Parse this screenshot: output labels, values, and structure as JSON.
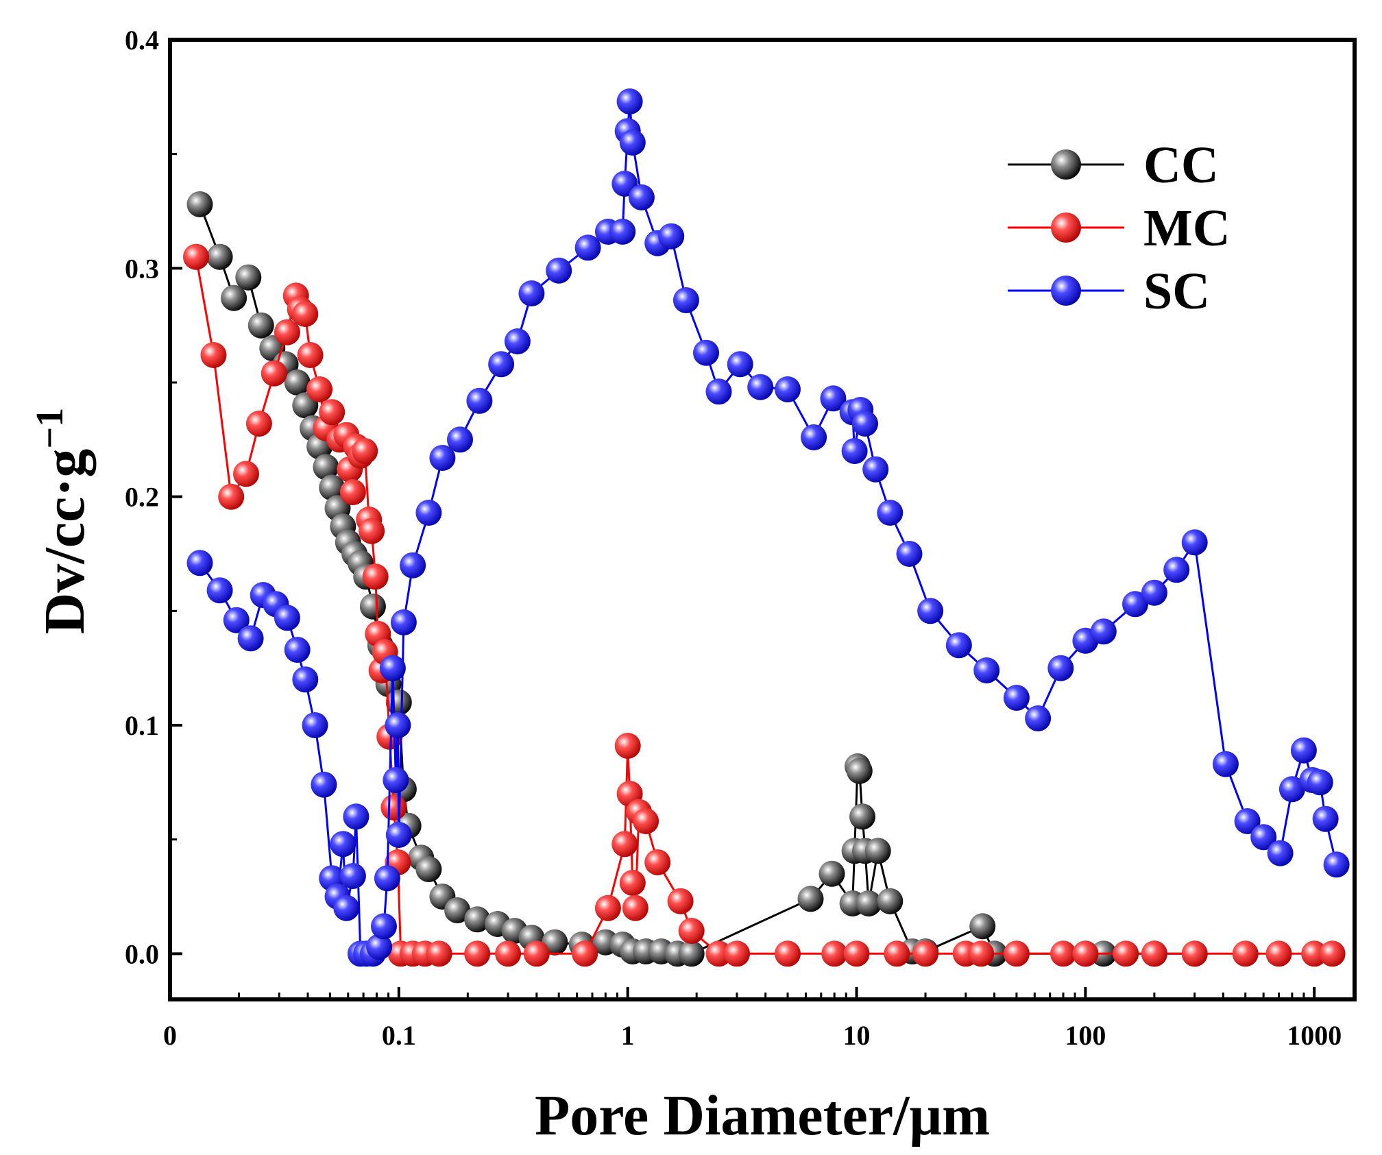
{
  "chart_data": {
    "type": "scatter",
    "title": "",
    "xlabel": "Pore Diameter/μm",
    "ylabel_main": "Dv/cc·g",
    "ylabel_sup": "−1",
    "xscale": "log",
    "xlim": [
      0.01,
      1500
    ],
    "ylim": [
      -0.02,
      0.4
    ],
    "x_tick_labels": [
      "0",
      "0.1",
      "1",
      "10",
      "100",
      "1000"
    ],
    "x_tick_values": [
      0.01,
      0.1,
      1,
      10,
      100,
      1000
    ],
    "y_tick_labels": [
      "0.0",
      "0.1",
      "0.2",
      "0.3",
      "0.4"
    ],
    "y_tick_values": [
      0.0,
      0.1,
      0.2,
      0.3,
      0.4
    ],
    "legend_position": "top-right",
    "series": [
      {
        "name": "CC",
        "color": "#000000",
        "points": [
          [
            0.0135,
            0.328
          ],
          [
            0.0165,
            0.305
          ],
          [
            0.019,
            0.287
          ],
          [
            0.022,
            0.296
          ],
          [
            0.025,
            0.275
          ],
          [
            0.028,
            0.265
          ],
          [
            0.032,
            0.258
          ],
          [
            0.036,
            0.25
          ],
          [
            0.039,
            0.24
          ],
          [
            0.042,
            0.23
          ],
          [
            0.045,
            0.222
          ],
          [
            0.048,
            0.213
          ],
          [
            0.051,
            0.204
          ],
          [
            0.054,
            0.195
          ],
          [
            0.057,
            0.187
          ],
          [
            0.06,
            0.18
          ],
          [
            0.064,
            0.175
          ],
          [
            0.068,
            0.171
          ],
          [
            0.072,
            0.165
          ],
          [
            0.077,
            0.152
          ],
          [
            0.083,
            0.135
          ],
          [
            0.09,
            0.118
          ],
          [
            0.1,
            0.11
          ],
          [
            0.105,
            0.072
          ],
          [
            0.11,
            0.056
          ],
          [
            0.125,
            0.042
          ],
          [
            0.135,
            0.037
          ],
          [
            0.155,
            0.025
          ],
          [
            0.18,
            0.019
          ],
          [
            0.22,
            0.015
          ],
          [
            0.27,
            0.013
          ],
          [
            0.32,
            0.01
          ],
          [
            0.38,
            0.007
          ],
          [
            0.48,
            0.005
          ],
          [
            0.63,
            0.004
          ],
          [
            0.8,
            0.005
          ],
          [
            0.95,
            0.004
          ],
          [
            1.05,
            0.001
          ],
          [
            1.2,
            0.001
          ],
          [
            1.4,
            0.001
          ],
          [
            1.65,
            0.0
          ],
          [
            1.9,
            0.0
          ],
          [
            6.3,
            0.024
          ],
          [
            7.8,
            0.035
          ],
          [
            9.6,
            0.022
          ],
          [
            9.8,
            0.045
          ],
          [
            10.1,
            0.082
          ],
          [
            10.3,
            0.08
          ],
          [
            10.6,
            0.06
          ],
          [
            10.9,
            0.045
          ],
          [
            11.3,
            0.022
          ],
          [
            12.4,
            0.045
          ],
          [
            14.0,
            0.023
          ],
          [
            17.5,
            0.001
          ],
          [
            20.0,
            0.001
          ],
          [
            35.5,
            0.012
          ],
          [
            40.0,
            0.0
          ],
          [
            100.0,
            0.0
          ],
          [
            120.0,
            0.0
          ],
          [
            200.0,
            0.0
          ],
          [
            300.0,
            0.0
          ]
        ]
      },
      {
        "name": "MC",
        "color": "#ff0000",
        "points": [
          [
            0.013,
            0.305
          ],
          [
            0.0155,
            0.262
          ],
          [
            0.0185,
            0.2
          ],
          [
            0.0215,
            0.21
          ],
          [
            0.0245,
            0.232
          ],
          [
            0.0285,
            0.254
          ],
          [
            0.0325,
            0.272
          ],
          [
            0.0355,
            0.288
          ],
          [
            0.037,
            0.282
          ],
          [
            0.039,
            0.28
          ],
          [
            0.041,
            0.262
          ],
          [
            0.045,
            0.247
          ],
          [
            0.048,
            0.23
          ],
          [
            0.051,
            0.237
          ],
          [
            0.055,
            0.225
          ],
          [
            0.059,
            0.227
          ],
          [
            0.061,
            0.212
          ],
          [
            0.063,
            0.202
          ],
          [
            0.065,
            0.222
          ],
          [
            0.068,
            0.218
          ],
          [
            0.071,
            0.22
          ],
          [
            0.074,
            0.19
          ],
          [
            0.076,
            0.185
          ],
          [
            0.079,
            0.165
          ],
          [
            0.081,
            0.14
          ],
          [
            0.084,
            0.124
          ],
          [
            0.087,
            0.132
          ],
          [
            0.091,
            0.095
          ],
          [
            0.095,
            0.064
          ],
          [
            0.099,
            0.04
          ],
          [
            0.102,
            0.0
          ],
          [
            0.115,
            0.0
          ],
          [
            0.13,
            0.0
          ],
          [
            0.15,
            0.0
          ],
          [
            0.22,
            0.0
          ],
          [
            0.3,
            0.0
          ],
          [
            0.4,
            0.0
          ],
          [
            0.65,
            0.0
          ],
          [
            0.82,
            0.02
          ],
          [
            0.97,
            0.048
          ],
          [
            1.0,
            0.091
          ],
          [
            1.02,
            0.07
          ],
          [
            1.05,
            0.031
          ],
          [
            1.08,
            0.02
          ],
          [
            1.12,
            0.062
          ],
          [
            1.2,
            0.058
          ],
          [
            1.35,
            0.04
          ],
          [
            1.7,
            0.023
          ],
          [
            1.9,
            0.01
          ],
          [
            2.5,
            0.0
          ],
          [
            3.0,
            0.0
          ],
          [
            5.0,
            0.0
          ],
          [
            8.0,
            0.0
          ],
          [
            10.0,
            0.0
          ],
          [
            15.0,
            0.0
          ],
          [
            20.0,
            0.0
          ],
          [
            30.0,
            0.0
          ],
          [
            35.0,
            0.0
          ],
          [
            50.0,
            0.0
          ],
          [
            80.0,
            0.0
          ],
          [
            100.0,
            0.0
          ],
          [
            150.0,
            0.0
          ],
          [
            200.0,
            0.0
          ],
          [
            300.0,
            0.0
          ],
          [
            500.0,
            0.0
          ],
          [
            700.0,
            0.0
          ],
          [
            1000.0,
            0.0
          ],
          [
            1200.0,
            0.0
          ]
        ]
      },
      {
        "name": "SC",
        "color": "#0000ff",
        "points": [
          [
            0.0135,
            0.171
          ],
          [
            0.0165,
            0.159
          ],
          [
            0.0195,
            0.146
          ],
          [
            0.0225,
            0.138
          ],
          [
            0.0255,
            0.157
          ],
          [
            0.029,
            0.153
          ],
          [
            0.0325,
            0.147
          ],
          [
            0.036,
            0.133
          ],
          [
            0.039,
            0.12
          ],
          [
            0.043,
            0.1
          ],
          [
            0.047,
            0.074
          ],
          [
            0.051,
            0.033
          ],
          [
            0.054,
            0.025
          ],
          [
            0.057,
            0.048
          ],
          [
            0.059,
            0.02
          ],
          [
            0.063,
            0.034
          ],
          [
            0.065,
            0.06
          ],
          [
            0.068,
            0.0
          ],
          [
            0.072,
            0.0
          ],
          [
            0.077,
            0.0
          ],
          [
            0.082,
            0.003
          ],
          [
            0.086,
            0.012
          ],
          [
            0.089,
            0.033
          ],
          [
            0.094,
            0.125
          ],
          [
            0.097,
            0.076
          ],
          [
            0.099,
            0.1
          ],
          [
            0.1,
            0.052
          ],
          [
            0.105,
            0.145
          ],
          [
            0.115,
            0.17
          ],
          [
            0.135,
            0.193
          ],
          [
            0.155,
            0.217
          ],
          [
            0.185,
            0.225
          ],
          [
            0.225,
            0.242
          ],
          [
            0.28,
            0.258
          ],
          [
            0.33,
            0.268
          ],
          [
            0.38,
            0.289
          ],
          [
            0.5,
            0.299
          ],
          [
            0.67,
            0.309
          ],
          [
            0.82,
            0.316
          ],
          [
            0.95,
            0.316
          ],
          [
            0.97,
            0.337
          ],
          [
            1.0,
            0.36
          ],
          [
            1.02,
            0.373
          ],
          [
            1.05,
            0.355
          ],
          [
            1.15,
            0.331
          ],
          [
            1.35,
            0.311
          ],
          [
            1.55,
            0.314
          ],
          [
            1.8,
            0.286
          ],
          [
            2.2,
            0.263
          ],
          [
            2.5,
            0.246
          ],
          [
            3.1,
            0.258
          ],
          [
            3.8,
            0.248
          ],
          [
            5.0,
            0.247
          ],
          [
            6.5,
            0.226
          ],
          [
            7.9,
            0.243
          ],
          [
            9.6,
            0.237
          ],
          [
            9.8,
            0.22
          ],
          [
            10.4,
            0.238
          ],
          [
            10.9,
            0.232
          ],
          [
            12.1,
            0.212
          ],
          [
            14.0,
            0.193
          ],
          [
            17.0,
            0.175
          ],
          [
            21.0,
            0.15
          ],
          [
            28.0,
            0.135
          ],
          [
            37.0,
            0.124
          ],
          [
            50.0,
            0.112
          ],
          [
            62.0,
            0.103
          ],
          [
            78.0,
            0.125
          ],
          [
            100.0,
            0.137
          ],
          [
            120.0,
            0.141
          ],
          [
            165.0,
            0.153
          ],
          [
            200.0,
            0.158
          ],
          [
            250.0,
            0.168
          ],
          [
            300.0,
            0.18
          ],
          [
            410.0,
            0.083
          ],
          [
            510.0,
            0.058
          ],
          [
            600.0,
            0.051
          ],
          [
            710.0,
            0.044
          ],
          [
            800.0,
            0.072
          ],
          [
            900.0,
            0.089
          ],
          [
            980.0,
            0.076
          ],
          [
            1060.0,
            0.075
          ],
          [
            1120.0,
            0.059
          ],
          [
            1250.0,
            0.039
          ]
        ]
      }
    ]
  }
}
